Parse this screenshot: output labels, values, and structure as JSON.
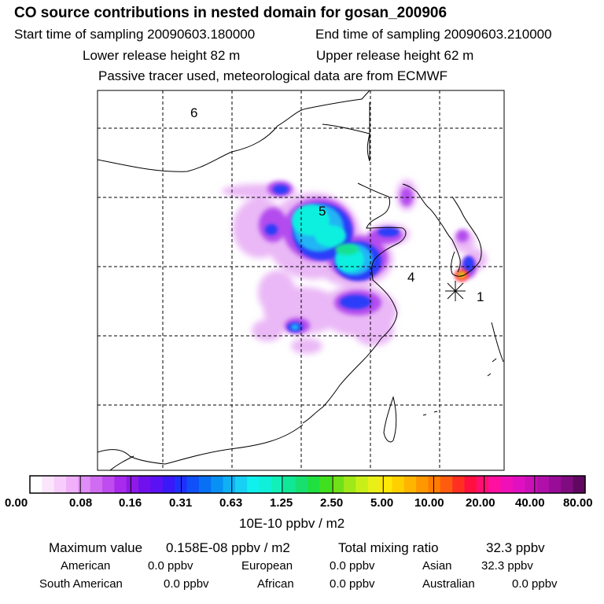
{
  "header": {
    "title": "CO  source contributions in nested domain for gosan_200906",
    "start_time": "Start time of sampling 20090603.180000",
    "end_time": "End time of sampling 20090603.210000",
    "lower_height": "Lower release height   82 m",
    "upper_height": "Upper release height   62 m",
    "note": "Passive tracer used, meteorological data are from ECMWF"
  },
  "map": {
    "region_labels": [
      "6",
      "5",
      "4",
      "1"
    ],
    "station_marker": "asterisk-icon"
  },
  "colorbar": {
    "tick_labels": [
      "0.00",
      "0.08",
      "0.16",
      "0.31",
      "0.63",
      "1.25",
      "2.50",
      "5.00",
      "10.00",
      "20.00",
      "40.00",
      "80.00"
    ],
    "unit": "10E-10 ppbv / m2",
    "colors": [
      "#ffffff",
      "#fbe5fd",
      "#f6cdfb",
      "#f0b1f8",
      "#e08df6",
      "#cf6cf2",
      "#be4cee",
      "#a82aec",
      "#8e1ae8",
      "#7010ec",
      "#5a12f4",
      "#3a18f8",
      "#2030fc",
      "#1050f8",
      "#0870f4",
      "#0890f4",
      "#10b0f4",
      "#18d0f4",
      "#10f0ec",
      "#10f0d8",
      "#10f0b8",
      "#10e898",
      "#18e070",
      "#20e040",
      "#40e020",
      "#70e018",
      "#a0e818",
      "#c8f018",
      "#e8f018",
      "#ffe808",
      "#ffd000",
      "#ffb400",
      "#ff9800",
      "#ff7c00",
      "#ff5c10",
      "#ff3020",
      "#ff1040",
      "#ff1070",
      "#ff10a0",
      "#f010b8",
      "#e010c0",
      "#cc10b8",
      "#b010a8",
      "#980c98",
      "#800a80",
      "#600860"
    ]
  },
  "stats": {
    "max_label": "Maximum value",
    "max_value": "0.158E-08 ppbv / m2",
    "total_label": "Total mixing ratio",
    "total_value": "32.3 ppbv",
    "sources": [
      {
        "name": "American",
        "value": "0.0 ppbv"
      },
      {
        "name": "European",
        "value": "0.0 ppbv"
      },
      {
        "name": "Asian",
        "value": "32.3 ppbv"
      },
      {
        "name": "South American",
        "value": "0.0 ppbv"
      },
      {
        "name": "African",
        "value": "0.0 ppbv"
      },
      {
        "name": "Australian",
        "value": "0.0 ppbv"
      }
    ]
  }
}
